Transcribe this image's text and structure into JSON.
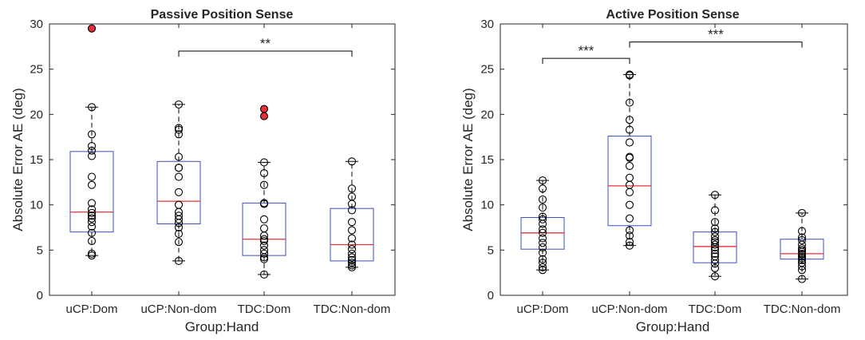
{
  "chart_data": [
    {
      "type": "box",
      "title": "Passive Position Sense",
      "xlabel": "Group:Hand",
      "ylabel": "Absolute Error AE (deg)",
      "ylim": [
        0,
        30
      ],
      "yticks": [
        "0",
        "5",
        "10",
        "15",
        "20",
        "25",
        "30"
      ],
      "categories": [
        "uCP:Dom",
        "uCP:Non-dom",
        "TDC:Dom",
        "TDC:Non-dom"
      ],
      "colors": {
        "box": "#3c4fbf",
        "median": "#e8303a",
        "outlier": "#e8303a",
        "point": "#000000"
      },
      "boxes": [
        {
          "q1": 7.0,
          "median": 9.2,
          "q3": 15.9,
          "whisker_low": 4.4,
          "whisker_high": 20.8,
          "outliers": [
            29.5
          ],
          "points": [
            4.4,
            4.6,
            6.0,
            6.9,
            7.6,
            8.1,
            8.5,
            8.8,
            9.1,
            9.5,
            10.2,
            12.2,
            13.1,
            15.4,
            16.0,
            16.5,
            17.8,
            20.8,
            29.5
          ]
        },
        {
          "q1": 7.9,
          "median": 10.4,
          "q3": 14.8,
          "whisker_low": 3.8,
          "whisker_high": 21.1,
          "outliers": [],
          "points": [
            3.8,
            5.9,
            6.8,
            7.5,
            8.0,
            8.4,
            8.8,
            9.2,
            10.0,
            11.4,
            13.1,
            14.1,
            14.1,
            15.3,
            17.8,
            18.3,
            18.5,
            21.1
          ]
        },
        {
          "q1": 4.4,
          "median": 6.2,
          "q3": 10.2,
          "whisker_low": 2.3,
          "whisker_high": 14.7,
          "outliers": [
            19.8,
            20.6
          ],
          "points": [
            2.3,
            4.0,
            4.2,
            4.6,
            5.0,
            5.5,
            6.0,
            6.2,
            6.6,
            7.4,
            8.4,
            10.1,
            10.2,
            12.2,
            13.5,
            14.7,
            19.8,
            20.6
          ]
        },
        {
          "q1": 3.8,
          "median": 5.6,
          "q3": 9.6,
          "whisker_low": 3.1,
          "whisker_high": 14.8,
          "outliers": [],
          "points": [
            3.1,
            3.3,
            3.6,
            3.9,
            4.2,
            4.6,
            5.1,
            5.6,
            6.3,
            7.2,
            8.1,
            9.4,
            10.1,
            10.9,
            11.8,
            14.8
          ]
        }
      ],
      "significance": [
        {
          "from": "uCP:Non-dom",
          "to": "TDC:Non-dom",
          "y": 27.0,
          "label": "**"
        }
      ]
    },
    {
      "type": "box",
      "title": "Active Position Sense",
      "xlabel": "Group:Hand",
      "ylabel": "Absolute Error AE (deg)",
      "ylim": [
        0,
        30
      ],
      "yticks": [
        "0",
        "5",
        "10",
        "15",
        "20",
        "25",
        "30"
      ],
      "categories": [
        "uCP:Dom",
        "uCP:Non-dom",
        "TDC:Dom",
        "TDC:Non-dom"
      ],
      "colors": {
        "box": "#3c4fbf",
        "median": "#e8303a",
        "outlier": "#e8303a",
        "point": "#000000"
      },
      "boxes": [
        {
          "q1": 5.1,
          "median": 6.9,
          "q3": 8.6,
          "whisker_low": 2.8,
          "whisker_high": 12.7,
          "outliers": [],
          "points": [
            2.8,
            3.1,
            3.6,
            4.0,
            4.7,
            5.3,
            5.8,
            6.3,
            6.9,
            7.3,
            7.9,
            8.4,
            8.7,
            9.7,
            10.6,
            11.8,
            12.7
          ]
        },
        {
          "q1": 7.7,
          "median": 12.1,
          "q3": 17.6,
          "whisker_low": 5.5,
          "whisker_high": 24.4,
          "outliers": [],
          "points": [
            5.5,
            5.9,
            6.6,
            7.2,
            8.5,
            10.0,
            11.4,
            12.2,
            13.0,
            14.3,
            15.2,
            15.3,
            16.9,
            18.3,
            19.4,
            21.3,
            24.3,
            24.4
          ]
        },
        {
          "q1": 3.6,
          "median": 5.4,
          "q3": 7.0,
          "whisker_low": 2.1,
          "whisker_high": 11.1,
          "outliers": [],
          "points": [
            2.1,
            3.0,
            3.5,
            3.9,
            4.3,
            4.6,
            5.0,
            5.3,
            5.6,
            5.9,
            6.1,
            6.5,
            7.0,
            7.4,
            8.1,
            9.4,
            11.1
          ]
        },
        {
          "q1": 4.0,
          "median": 4.6,
          "q3": 6.2,
          "whisker_low": 1.8,
          "whisker_high": 9.1,
          "outliers": [],
          "points": [
            1.8,
            2.8,
            3.2,
            3.6,
            3.9,
            4.1,
            4.3,
            4.5,
            4.6,
            4.8,
            5.0,
            5.2,
            5.6,
            6.1,
            6.4,
            7.1,
            9.1
          ]
        }
      ],
      "significance": [
        {
          "from": "uCP:Dom",
          "to": "uCP:Non-dom",
          "y": 26.2,
          "label": "***"
        },
        {
          "from": "uCP:Non-dom",
          "to": "TDC:Non-dom",
          "y": 28.0,
          "label": "***"
        }
      ]
    }
  ]
}
